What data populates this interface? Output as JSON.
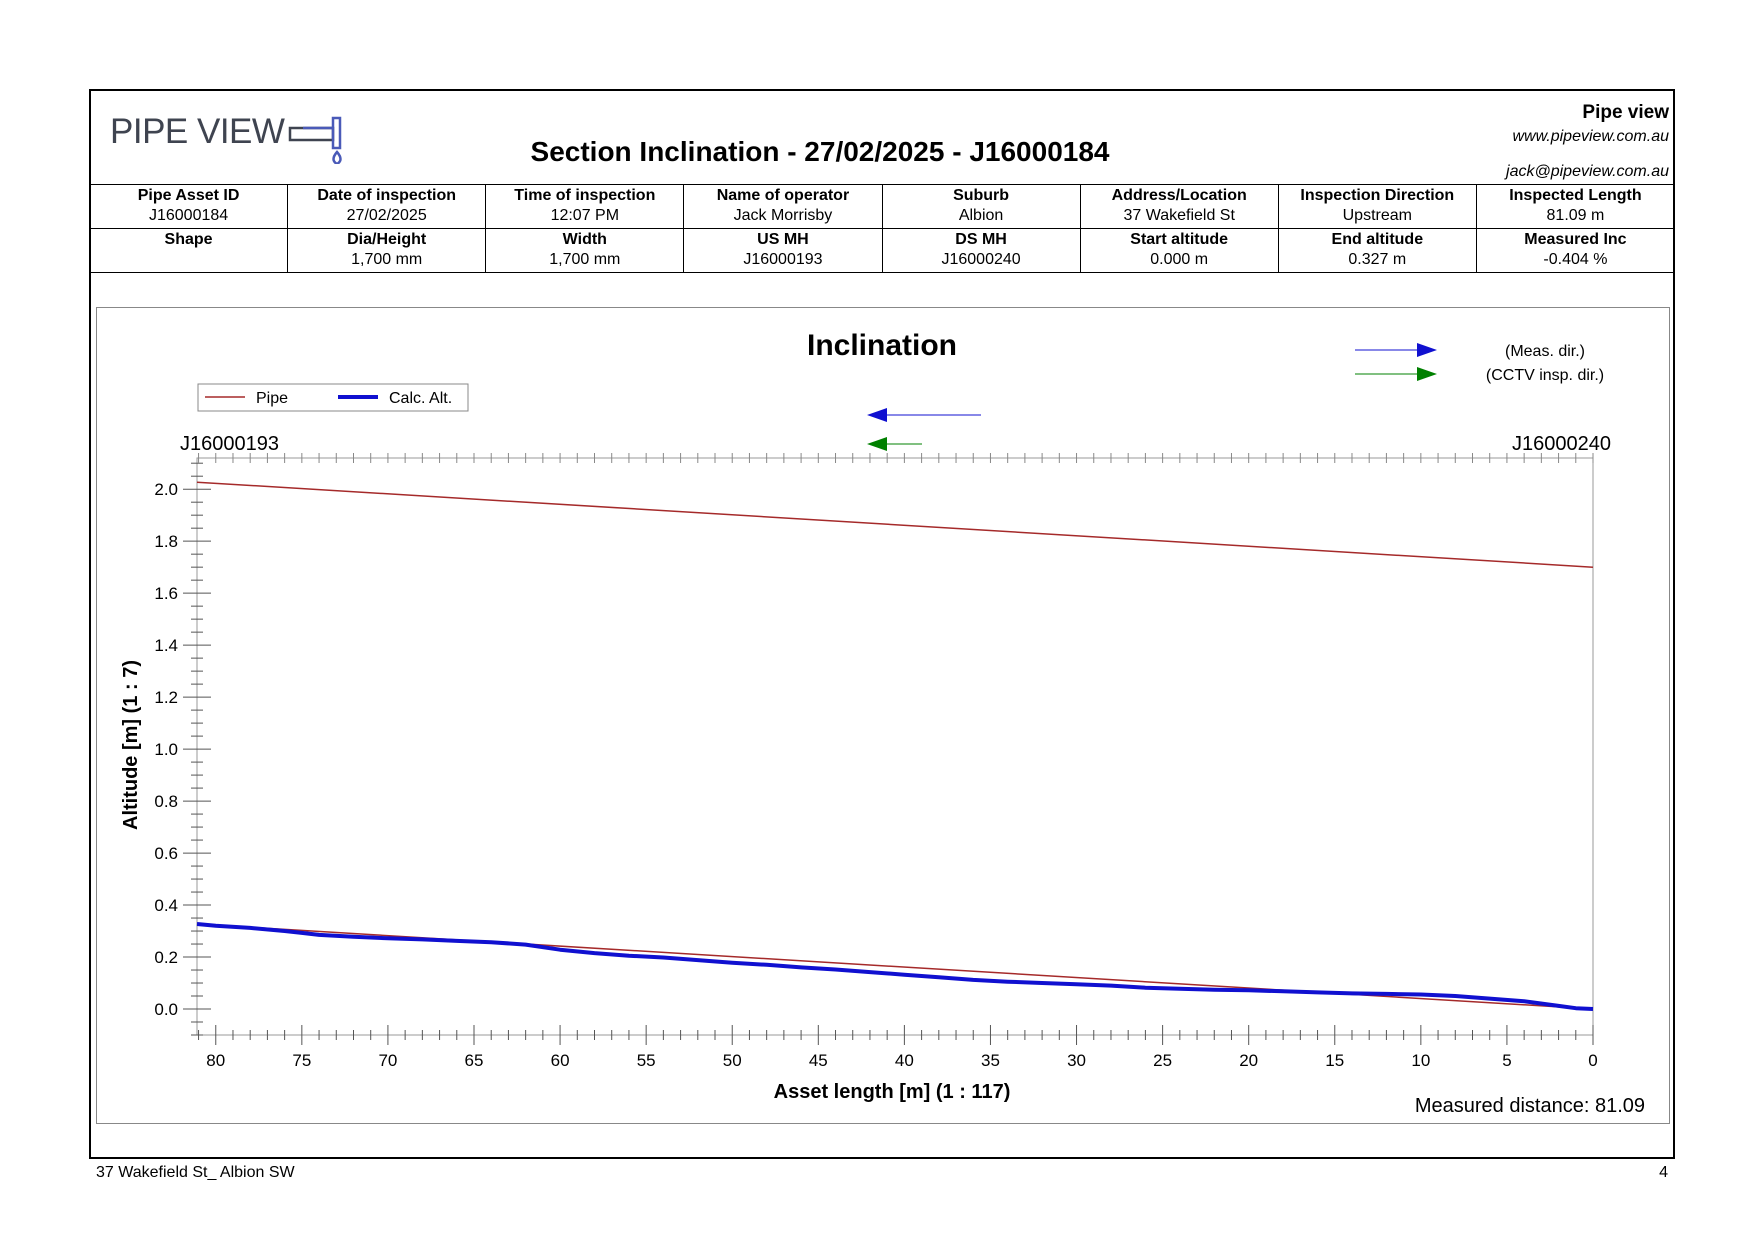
{
  "header": {
    "logo_text": "PIPE VIEW",
    "title": "Section Inclination - 27/02/2025 - J16000184",
    "company_name": "Pipe view",
    "company_web": "www.pipeview.com.au",
    "company_email": "jack@pipeview.com.au"
  },
  "info_table": {
    "rows": [
      [
        {
          "label": "Pipe Asset ID",
          "value": "J16000184"
        },
        {
          "label": "Date of inspection",
          "value": "27/02/2025"
        },
        {
          "label": "Time of inspection",
          "value": "12:07 PM"
        },
        {
          "label": "Name of operator",
          "value": "Jack Morrisby"
        },
        {
          "label": "Suburb",
          "value": "Albion"
        },
        {
          "label": "Address/Location",
          "value": "37 Wakefield St"
        },
        {
          "label": "Inspection Direction",
          "value": "Upstream"
        },
        {
          "label": "Inspected Length",
          "value": "81.09 m"
        }
      ],
      [
        {
          "label": "Shape",
          "value": ""
        },
        {
          "label": "Dia/Height",
          "value": "1,700 mm"
        },
        {
          "label": "Width",
          "value": "1,700 mm"
        },
        {
          "label": "US MH",
          "value": "J16000193"
        },
        {
          "label": "DS MH",
          "value": "J16000240"
        },
        {
          "label": "Start altitude",
          "value": "0.000 m"
        },
        {
          "label": "End altitude",
          "value": "0.327 m"
        },
        {
          "label": "Measured Inc",
          "value": "-0.404 %"
        }
      ]
    ]
  },
  "chart_data": {
    "type": "line",
    "title": "Inclination",
    "xlabel": "Asset length [m] (1 : 117)",
    "ylabel": "Altitude [m] (1 : 7)",
    "xlim": [
      81.09,
      0
    ],
    "ylim": [
      -0.1,
      2.12
    ],
    "x_ticks": [
      80,
      75,
      70,
      65,
      60,
      55,
      50,
      45,
      40,
      35,
      30,
      25,
      20,
      15,
      10,
      5,
      0
    ],
    "y_ticks": [
      0.0,
      0.2,
      0.4,
      0.6,
      0.8,
      1.0,
      1.2,
      1.4,
      1.6,
      1.8,
      2.0
    ],
    "y_tick_labels": [
      "0.0",
      "0.2",
      "0.4",
      "0.6",
      "0.8",
      "1.0",
      "1.2",
      "1.4",
      "1.6",
      "1.8",
      "2.0"
    ],
    "left_node": "J16000193",
    "right_node": "J16000240",
    "legend": {
      "placement": "top-left",
      "entries": [
        {
          "label": "Pipe",
          "color": "#a52a2a"
        },
        {
          "label": "Calc. Alt.",
          "color": "#1010d0"
        }
      ]
    },
    "direction_legend": [
      {
        "label": "(Meas. dir.)",
        "color": "#1010d0"
      },
      {
        "label": "(CCTV insp. dir.)",
        "color": "#008000"
      }
    ],
    "measured_distance_text": "Measured distance: 81.09",
    "series": [
      {
        "name": "Pipe",
        "color": "#a52a2a",
        "x": [
          81.09,
          0
        ],
        "y": [
          2.027,
          1.7
        ]
      },
      {
        "name": "Pipe",
        "color": "#a52a2a",
        "x": [
          81.09,
          0
        ],
        "y": [
          0.327,
          0.0
        ]
      },
      {
        "name": "Calc. Alt.",
        "color": "#1010d0",
        "x": [
          81.09,
          80,
          78,
          76,
          75,
          74,
          72,
          70,
          68,
          66,
          64,
          62,
          60,
          58,
          56,
          54,
          52,
          50,
          48,
          46,
          44,
          42,
          40,
          38,
          36,
          34,
          32,
          30,
          28,
          26,
          24,
          22,
          20,
          18,
          16,
          14,
          12,
          10,
          8,
          6,
          4,
          2,
          1,
          0
        ],
        "y": [
          0.327,
          0.32,
          0.312,
          0.3,
          0.293,
          0.285,
          0.278,
          0.272,
          0.268,
          0.262,
          0.257,
          0.248,
          0.228,
          0.215,
          0.205,
          0.198,
          0.188,
          0.178,
          0.17,
          0.16,
          0.152,
          0.142,
          0.132,
          0.122,
          0.112,
          0.105,
          0.1,
          0.095,
          0.09,
          0.082,
          0.078,
          0.074,
          0.072,
          0.068,
          0.064,
          0.06,
          0.058,
          0.056,
          0.05,
          0.04,
          0.03,
          0.012,
          0.003,
          0.0
        ]
      }
    ]
  },
  "footer": {
    "left": "37 Wakefield St_ Albion SW",
    "page": "4"
  }
}
